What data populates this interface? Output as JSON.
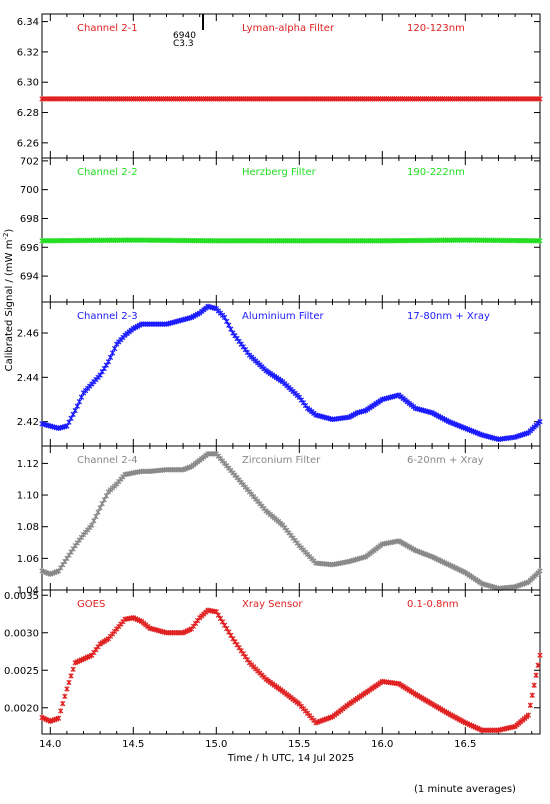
{
  "chart_data": {
    "type": "scatter",
    "shared_x": {
      "label": "Time / h UTC, 14 Jul 2025",
      "range": [
        13.95,
        16.95
      ],
      "ticks": [
        14.0,
        14.5,
        15.0,
        15.5,
        16.0,
        16.5
      ],
      "tick_labels": [
        "14.0",
        "14.5",
        "15.0",
        "15.5",
        "16.0",
        "16.5"
      ]
    },
    "ylabel": "Calibrated Signal / (mW m^-2)",
    "ylabel_base": "Calibrated Signal / (mW m",
    "ylabel_exp": "-2",
    "ylabel_close": ")",
    "footnote": "(1 minute averages)",
    "panels": [
      {
        "channel": "Channel 2-1",
        "filter": "Lyman-alpha Filter",
        "band": "120-123nm",
        "color": "#e02020",
        "ylim": [
          6.25,
          6.345
        ],
        "yticks": [
          6.26,
          6.28,
          6.3,
          6.32,
          6.34
        ],
        "ytick_labels": [
          "6.26",
          "6.28",
          "6.30",
          "6.32",
          "6.34"
        ],
        "annotation": {
          "lines": [
            "6940",
            "C3.3"
          ],
          "x": 14.92
        },
        "points": [
          [
            13.95,
            6.289
          ],
          [
            16.95,
            6.289
          ]
        ]
      },
      {
        "channel": "Channel 2-2",
        "filter": "Herzberg Filter",
        "band": "190-222nm",
        "color": "#22dd22",
        "ylim": [
          692.2,
          702.2
        ],
        "yticks": [
          694,
          696,
          698,
          700,
          702
        ],
        "ytick_labels": [
          "694",
          "696",
          "698",
          "700",
          "702"
        ],
        "points": [
          [
            13.95,
            696.45
          ],
          [
            14.5,
            696.5
          ],
          [
            15.0,
            696.45
          ],
          [
            15.5,
            696.45
          ],
          [
            16.0,
            696.45
          ],
          [
            16.5,
            696.5
          ],
          [
            16.95,
            696.45
          ]
        ]
      },
      {
        "channel": "Channel 2-3",
        "filter": "Aluminium Filter",
        "band": "17-80nm + Xray",
        "color": "#1a1aff",
        "ylim": [
          2.409,
          2.474
        ],
        "yticks": [
          2.42,
          2.44,
          2.46
        ],
        "ytick_labels": [
          "2.42",
          "2.44",
          "2.46"
        ],
        "points": [
          [
            13.95,
            2.419
          ],
          [
            14.0,
            2.418
          ],
          [
            14.05,
            2.417
          ],
          [
            14.1,
            2.418
          ],
          [
            14.15,
            2.425
          ],
          [
            14.2,
            2.433
          ],
          [
            14.25,
            2.437
          ],
          [
            14.3,
            2.441
          ],
          [
            14.35,
            2.447
          ],
          [
            14.4,
            2.455
          ],
          [
            14.45,
            2.459
          ],
          [
            14.5,
            2.462
          ],
          [
            14.55,
            2.464
          ],
          [
            14.6,
            2.464
          ],
          [
            14.7,
            2.464
          ],
          [
            14.8,
            2.466
          ],
          [
            14.85,
            2.467
          ],
          [
            14.9,
            2.469
          ],
          [
            14.95,
            2.472
          ],
          [
            15.0,
            2.471
          ],
          [
            15.05,
            2.467
          ],
          [
            15.1,
            2.46
          ],
          [
            15.15,
            2.455
          ],
          [
            15.2,
            2.45
          ],
          [
            15.3,
            2.443
          ],
          [
            15.4,
            2.438
          ],
          [
            15.5,
            2.431
          ],
          [
            15.55,
            2.426
          ],
          [
            15.6,
            2.423
          ],
          [
            15.7,
            2.421
          ],
          [
            15.8,
            2.422
          ],
          [
            15.85,
            2.424
          ],
          [
            15.9,
            2.425
          ],
          [
            16.0,
            2.43
          ],
          [
            16.1,
            2.432
          ],
          [
            16.15,
            2.429
          ],
          [
            16.2,
            2.426
          ],
          [
            16.3,
            2.424
          ],
          [
            16.4,
            2.42
          ],
          [
            16.5,
            2.417
          ],
          [
            16.6,
            2.414
          ],
          [
            16.7,
            2.412
          ],
          [
            16.8,
            2.413
          ],
          [
            16.88,
            2.415
          ],
          [
            16.95,
            2.42
          ]
        ]
      },
      {
        "channel": "Channel 2-4",
        "filter": "Zirconium Filter",
        "band": "6-20nm + Xray",
        "color": "#888888",
        "ylim": [
          1.04,
          1.131
        ],
        "yticks": [
          1.04,
          1.06,
          1.08,
          1.1,
          1.12
        ],
        "ytick_labels": [
          "1.04",
          "1.06",
          "1.08",
          "1.10",
          "1.12"
        ],
        "points": [
          [
            13.95,
            1.052
          ],
          [
            14.0,
            1.05
          ],
          [
            14.05,
            1.052
          ],
          [
            14.1,
            1.06
          ],
          [
            14.15,
            1.068
          ],
          [
            14.2,
            1.075
          ],
          [
            14.25,
            1.081
          ],
          [
            14.3,
            1.092
          ],
          [
            14.35,
            1.102
          ],
          [
            14.4,
            1.107
          ],
          [
            14.45,
            1.113
          ],
          [
            14.5,
            1.114
          ],
          [
            14.55,
            1.115
          ],
          [
            14.6,
            1.115
          ],
          [
            14.7,
            1.116
          ],
          [
            14.8,
            1.116
          ],
          [
            14.85,
            1.118
          ],
          [
            14.9,
            1.122
          ],
          [
            14.95,
            1.126
          ],
          [
            15.0,
            1.126
          ],
          [
            15.05,
            1.12
          ],
          [
            15.1,
            1.114
          ],
          [
            15.2,
            1.102
          ],
          [
            15.3,
            1.09
          ],
          [
            15.4,
            1.081
          ],
          [
            15.5,
            1.068
          ],
          [
            15.6,
            1.057
          ],
          [
            15.7,
            1.056
          ],
          [
            15.8,
            1.058
          ],
          [
            15.9,
            1.061
          ],
          [
            16.0,
            1.069
          ],
          [
            16.1,
            1.071
          ],
          [
            16.2,
            1.065
          ],
          [
            16.3,
            1.061
          ],
          [
            16.4,
            1.056
          ],
          [
            16.5,
            1.051
          ],
          [
            16.6,
            1.044
          ],
          [
            16.7,
            1.041
          ],
          [
            16.8,
            1.042
          ],
          [
            16.88,
            1.045
          ],
          [
            16.95,
            1.052
          ]
        ]
      },
      {
        "channel": "GOES",
        "filter": "Xray Sensor",
        "band": "0.1-0.8nm",
        "color": "#e02020",
        "ylim": [
          0.00165,
          0.00357
        ],
        "yticks": [
          0.002,
          0.0025,
          0.003,
          0.0035
        ],
        "ytick_labels": [
          "0.0020",
          "0.0025",
          "0.0030",
          "0.0035"
        ],
        "points": [
          [
            13.95,
            0.00187
          ],
          [
            14.0,
            0.00182
          ],
          [
            14.05,
            0.00186
          ],
          [
            14.1,
            0.00225
          ],
          [
            14.15,
            0.0026
          ],
          [
            14.2,
            0.00265
          ],
          [
            14.25,
            0.0027
          ],
          [
            14.3,
            0.00285
          ],
          [
            14.35,
            0.00292
          ],
          [
            14.4,
            0.00305
          ],
          [
            14.45,
            0.00318
          ],
          [
            14.5,
            0.0032
          ],
          [
            14.55,
            0.00315
          ],
          [
            14.6,
            0.00306
          ],
          [
            14.7,
            0.003
          ],
          [
            14.8,
            0.003
          ],
          [
            14.85,
            0.00305
          ],
          [
            14.9,
            0.0032
          ],
          [
            14.95,
            0.0033
          ],
          [
            15.0,
            0.00328
          ],
          [
            15.05,
            0.0031
          ],
          [
            15.1,
            0.00292
          ],
          [
            15.2,
            0.0026
          ],
          [
            15.3,
            0.00238
          ],
          [
            15.4,
            0.00222
          ],
          [
            15.5,
            0.00205
          ],
          [
            15.6,
            0.0018
          ],
          [
            15.7,
            0.00188
          ],
          [
            15.8,
            0.00205
          ],
          [
            15.9,
            0.0022
          ],
          [
            16.0,
            0.00235
          ],
          [
            16.1,
            0.00232
          ],
          [
            16.2,
            0.00218
          ],
          [
            16.3,
            0.00205
          ],
          [
            16.4,
            0.00192
          ],
          [
            16.5,
            0.0018
          ],
          [
            16.6,
            0.0017
          ],
          [
            16.7,
            0.0017
          ],
          [
            16.8,
            0.00175
          ],
          [
            16.88,
            0.0019
          ],
          [
            16.95,
            0.0027
          ]
        ]
      }
    ]
  }
}
